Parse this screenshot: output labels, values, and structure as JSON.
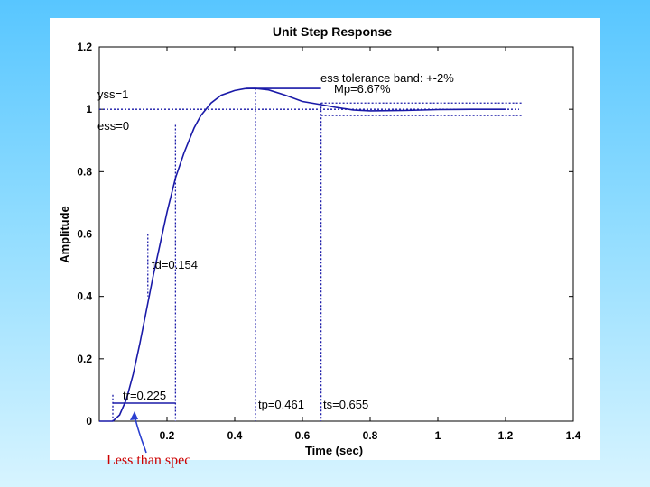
{
  "chart_data": {
    "type": "line",
    "title": "Unit Step Response",
    "xlabel": "Time (sec)",
    "ylabel": "Amplitude",
    "xlim": [
      0,
      1.4
    ],
    "ylim": [
      0,
      1.2
    ],
    "xticks": [
      0.2,
      0.4,
      0.6,
      0.8,
      1,
      1.2,
      1.4
    ],
    "yticks": [
      0,
      0.2,
      0.4,
      0.6,
      0.8,
      1,
      1.2
    ],
    "grid": false,
    "series": [
      {
        "x": [
          0,
          0.04,
          0.06,
          0.08,
          0.1,
          0.12,
          0.14,
          0.16,
          0.18,
          0.2,
          0.225,
          0.25,
          0.28,
          0.3,
          0.33,
          0.36,
          0.4,
          0.43,
          0.461,
          0.5,
          0.55,
          0.6,
          0.655,
          0.7,
          0.75,
          0.8,
          0.9,
          1.0,
          1.1,
          1.2
        ],
        "y": [
          0,
          0,
          0.02,
          0.07,
          0.15,
          0.25,
          0.36,
          0.47,
          0.57,
          0.67,
          0.78,
          0.86,
          0.94,
          0.98,
          1.02,
          1.045,
          1.06,
          1.066,
          1.0667,
          1.062,
          1.045,
          1.025,
          1.015,
          1.006,
          0.998,
          0.995,
          0.996,
          0.999,
          1.0,
          1.0
        ],
        "color": "#1a1aa8"
      }
    ],
    "annotations": {
      "tolerance": "ess tolerance band: +-2%",
      "mp": "Mp=6.67%",
      "yss": "yss=1",
      "ess": "ess=0",
      "td": "td=0.154",
      "tr": "tr=0.225",
      "tp": "tp=0.461",
      "ts": "ts=0.655"
    },
    "markers": {
      "yss": 1,
      "band_upper": 1.02,
      "band_lower": 0.98,
      "overshoot": 1.0667,
      "tr_start": 0.04,
      "tr_end": 0.225,
      "td": 0.154,
      "tp": 0.461,
      "ts": 0.655,
      "td_y_low": 0.4,
      "td_y_high": 0.6,
      "tr_y_low": 0.05,
      "tr_y_high": 0.95
    }
  },
  "note": "Less than spec",
  "colors": {
    "line": "#1a1aa8",
    "dotted": "#1a1aa8",
    "note": "#cc0000",
    "arrow": "#2a3fd0"
  }
}
